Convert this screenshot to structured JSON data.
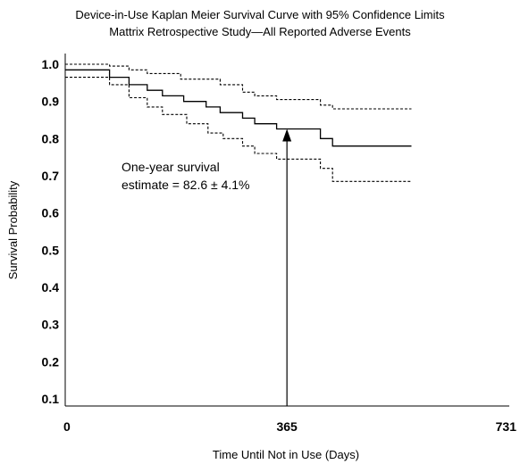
{
  "chart_data": {
    "type": "line",
    "title": "Device-in-Use Kaplan Meier Survival Curve with 95% Confidence Limits",
    "subtitle": "Mattrix Retrospective Study—All Reported Adverse Events",
    "xlabel": "Time Until Not in Use (Days)",
    "ylabel": "Survival Probability",
    "xlim": [
      0,
      731
    ],
    "ylim": [
      0.1,
      1.0
    ],
    "x_ticks": [
      "0",
      "365",
      "731"
    ],
    "y_ticks": [
      "1.0",
      "0.9",
      "0.8",
      "0.7",
      "0.6",
      "0.5",
      "0.4",
      "0.3",
      "0.2",
      "0.1"
    ],
    "grid": false,
    "series": [
      {
        "line_style": "solid",
        "step_points": [
          [
            0,
            0.985
          ],
          [
            73,
            0.985
          ],
          [
            73,
            0.965
          ],
          [
            105,
            0.965
          ],
          [
            105,
            0.945
          ],
          [
            135,
            0.945
          ],
          [
            135,
            0.93
          ],
          [
            160,
            0.93
          ],
          [
            160,
            0.915
          ],
          [
            195,
            0.915
          ],
          [
            195,
            0.9
          ],
          [
            232,
            0.9
          ],
          [
            232,
            0.885
          ],
          [
            255,
            0.885
          ],
          [
            255,
            0.87
          ],
          [
            292,
            0.87
          ],
          [
            292,
            0.855
          ],
          [
            312,
            0.855
          ],
          [
            312,
            0.84
          ],
          [
            348,
            0.84
          ],
          [
            348,
            0.826
          ],
          [
            420,
            0.826
          ],
          [
            420,
            0.8
          ],
          [
            440,
            0.8
          ],
          [
            440,
            0.78
          ],
          [
            570,
            0.78
          ]
        ]
      },
      {
        "line_style": "dashed",
        "step_points": [
          [
            0,
            1.0
          ],
          [
            73,
            1.0
          ],
          [
            73,
            0.995
          ],
          [
            105,
            0.995
          ],
          [
            105,
            0.985
          ],
          [
            135,
            0.985
          ],
          [
            135,
            0.975
          ],
          [
            190,
            0.975
          ],
          [
            190,
            0.96
          ],
          [
            255,
            0.96
          ],
          [
            255,
            0.945
          ],
          [
            292,
            0.945
          ],
          [
            292,
            0.925
          ],
          [
            312,
            0.925
          ],
          [
            312,
            0.915
          ],
          [
            348,
            0.915
          ],
          [
            348,
            0.905
          ],
          [
            420,
            0.905
          ],
          [
            420,
            0.89
          ],
          [
            440,
            0.89
          ],
          [
            440,
            0.88
          ],
          [
            570,
            0.88
          ]
        ]
      },
      {
        "line_style": "dashed",
        "step_points": [
          [
            0,
            0.965
          ],
          [
            73,
            0.965
          ],
          [
            73,
            0.945
          ],
          [
            105,
            0.945
          ],
          [
            105,
            0.91
          ],
          [
            135,
            0.91
          ],
          [
            135,
            0.885
          ],
          [
            160,
            0.885
          ],
          [
            160,
            0.865
          ],
          [
            200,
            0.865
          ],
          [
            200,
            0.84
          ],
          [
            235,
            0.84
          ],
          [
            235,
            0.815
          ],
          [
            260,
            0.815
          ],
          [
            260,
            0.8
          ],
          [
            292,
            0.8
          ],
          [
            292,
            0.78
          ],
          [
            312,
            0.78
          ],
          [
            312,
            0.76
          ],
          [
            348,
            0.76
          ],
          [
            348,
            0.745
          ],
          [
            420,
            0.745
          ],
          [
            420,
            0.72
          ],
          [
            440,
            0.72
          ],
          [
            440,
            0.685
          ],
          [
            570,
            0.685
          ]
        ]
      }
    ],
    "annotation": {
      "lines": [
        "One-year survival",
        "estimate = 82.6 ± 4.1%"
      ],
      "arrow_x": 365,
      "arrow_from_y": 0.1,
      "arrow_to_y": 0.826
    }
  }
}
